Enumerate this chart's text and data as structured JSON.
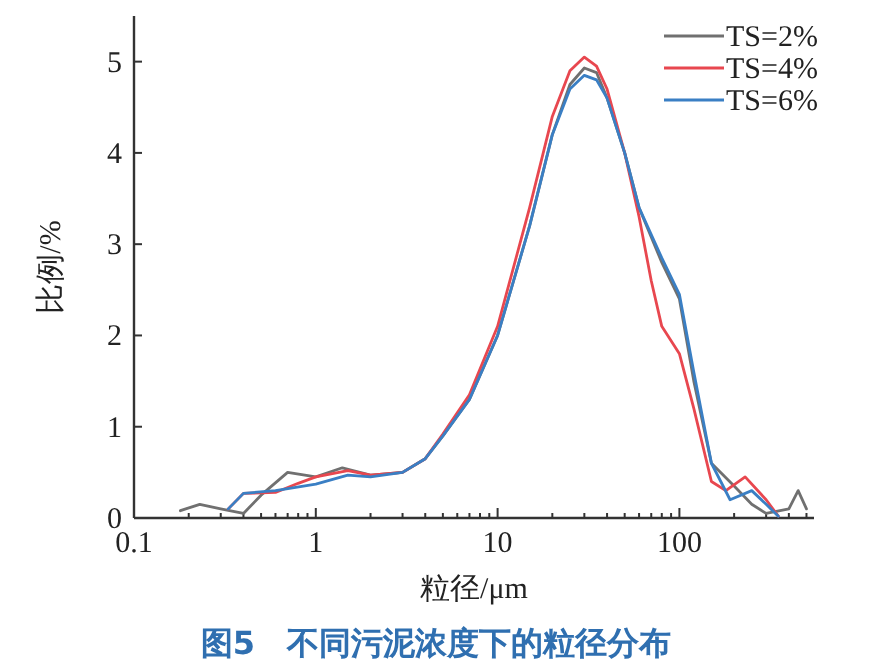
{
  "chart_data": {
    "type": "line",
    "title": "图5　不同污泥浓度下的粒径分布",
    "xlabel": "粒径/μm",
    "ylabel": "比例/%",
    "log": "x",
    "xlim": [
      0.1,
      550
    ],
    "xticks": [
      0.1,
      1,
      10,
      100
    ],
    "ylim": [
      0,
      5.5
    ],
    "yticks": [
      0,
      1,
      2,
      3,
      4,
      5
    ],
    "grid": false,
    "legend": "top right",
    "marker": "none",
    "line_style": "solid",
    "series": [
      {
        "name": "TS=2%",
        "color": "#707070",
        "x": [
          0.18,
          0.23,
          0.3,
          0.4,
          0.5,
          0.7,
          1.0,
          1.4,
          2,
          3,
          4,
          5,
          7,
          10,
          15,
          20,
          25,
          30,
          35,
          40,
          50,
          60,
          80,
          100,
          120,
          150,
          200,
          250,
          300,
          400,
          450,
          500
        ],
        "values": [
          0.08,
          0.15,
          0.1,
          0.05,
          0.25,
          0.5,
          0.45,
          0.55,
          0.47,
          0.5,
          0.65,
          0.9,
          1.3,
          2.0,
          3.2,
          4.2,
          4.75,
          4.93,
          4.88,
          4.6,
          4.0,
          3.4,
          2.8,
          2.4,
          1.5,
          0.6,
          0.35,
          0.15,
          0.05,
          0.1,
          0.3,
          0.1
        ]
      },
      {
        "name": "TS=4%",
        "color": "#e8474f",
        "x": [
          0.33,
          0.4,
          0.6,
          0.8,
          1,
          1.5,
          2,
          3,
          4,
          5,
          7,
          10,
          15,
          20,
          25,
          30,
          35,
          40,
          50,
          60,
          70,
          80,
          100,
          120,
          150,
          180,
          230,
          300,
          350
        ],
        "values": [
          0.1,
          0.27,
          0.28,
          0.38,
          0.45,
          0.52,
          0.47,
          0.5,
          0.65,
          0.92,
          1.35,
          2.1,
          3.4,
          4.4,
          4.9,
          5.05,
          4.95,
          4.7,
          4.0,
          3.3,
          2.6,
          2.1,
          1.8,
          1.2,
          0.4,
          0.3,
          0.45,
          0.2,
          0.02
        ]
      },
      {
        "name": "TS=6%",
        "color": "#3a7fc4",
        "x": [
          0.33,
          0.4,
          0.6,
          1,
          1.5,
          2,
          3,
          4,
          5,
          7,
          10,
          15,
          20,
          25,
          30,
          35,
          40,
          50,
          60,
          80,
          100,
          120,
          150,
          190,
          250,
          300,
          350
        ],
        "values": [
          0.1,
          0.27,
          0.3,
          0.37,
          0.47,
          0.45,
          0.5,
          0.65,
          0.9,
          1.3,
          2.0,
          3.2,
          4.2,
          4.7,
          4.85,
          4.8,
          4.6,
          4.0,
          3.4,
          2.85,
          2.45,
          1.6,
          0.6,
          0.2,
          0.3,
          0.15,
          0.02
        ]
      }
    ]
  }
}
